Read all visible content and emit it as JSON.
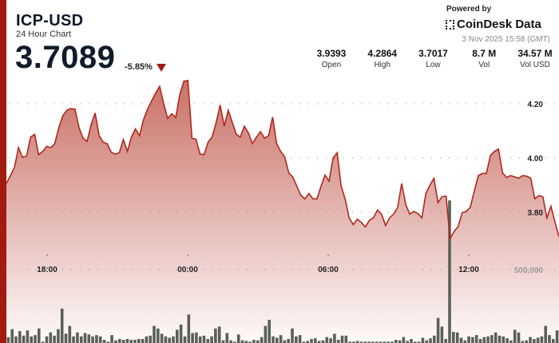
{
  "header": {
    "symbol": "ICP-USD",
    "subtitle": "24 Hour Chart",
    "price": "3.7089",
    "change": "-5.85%",
    "direction_icon": "triangle-down-icon"
  },
  "branding": {
    "powered_by": "Powered by",
    "name": "CoinDesk Data",
    "timestamp": "3 Nov 2025 15:58 (GMT)"
  },
  "stats": [
    {
      "value": "3.9393",
      "label": "Open"
    },
    {
      "value": "4.2864",
      "label": "High"
    },
    {
      "value": "3.7017",
      "label": "Low"
    },
    {
      "value": "8.7 M",
      "label": "Vol"
    },
    {
      "value": "34.57 M",
      "label": "Vol USD"
    }
  ],
  "colors": {
    "accent": "#a31b10",
    "line": "#b0281c",
    "volume": "#5a6058"
  },
  "chart_data": {
    "type": "area",
    "title": "",
    "x_ticks": [
      "18:00",
      "00:00",
      "06:00",
      "12:00"
    ],
    "y_ticks": [
      "4.20",
      "4.00",
      "3.80"
    ],
    "y_tick_values": [
      4.2,
      4.0,
      3.8
    ],
    "volume_tick": "500,000",
    "volume_tick_value": 500000,
    "grid": true,
    "price": [
      3.906,
      3.935,
      3.965,
      4.038,
      4.002,
      4.007,
      4.077,
      4.087,
      4.012,
      4.024,
      4.043,
      4.038,
      4.053,
      4.112,
      4.156,
      4.176,
      4.182,
      4.18,
      4.112,
      4.073,
      4.061,
      4.122,
      4.166,
      4.082,
      4.058,
      4.052,
      4.021,
      4.014,
      4.019,
      4.068,
      4.024,
      4.077,
      4.107,
      4.082,
      4.141,
      4.18,
      4.21,
      4.239,
      4.264,
      4.2,
      4.146,
      4.163,
      4.149,
      4.234,
      4.283,
      4.286,
      4.073,
      4.069,
      4.014,
      4.012,
      4.058,
      4.077,
      4.131,
      4.195,
      4.117,
      4.176,
      4.131,
      4.087,
      4.077,
      4.117,
      4.092,
      4.053,
      4.077,
      4.097,
      4.073,
      4.082,
      4.151,
      4.053,
      4.024,
      4.004,
      3.945,
      3.93,
      3.896,
      3.862,
      3.849,
      3.869,
      3.849,
      3.849,
      3.896,
      3.937,
      3.914,
      4.0,
      4.019,
      3.896,
      3.847,
      3.778,
      3.754,
      3.774,
      3.762,
      3.746,
      3.77,
      3.779,
      3.808,
      3.793,
      3.751,
      3.779,
      3.793,
      3.818,
      3.906,
      3.828,
      3.793,
      3.803,
      3.795,
      3.779,
      3.869,
      3.9,
      3.925,
      3.835,
      3.857,
      3.859,
      3.702,
      3.729,
      3.747,
      3.798,
      3.803,
      3.818,
      3.877,
      3.935,
      3.943,
      3.943,
      4.009,
      4.024,
      4.033,
      3.945,
      3.928,
      3.935,
      3.93,
      3.925,
      3.935,
      3.933,
      3.925,
      3.849,
      3.861,
      3.857,
      3.779,
      3.822,
      3.764,
      3.709
    ],
    "volume": [
      40000,
      94000,
      45000,
      81000,
      50000,
      86000,
      45000,
      54000,
      99000,
      9000,
      45000,
      72000,
      50000,
      94000,
      234000,
      63000,
      117000,
      45000,
      72000,
      45000,
      68000,
      58000,
      45000,
      54000,
      45000,
      22000,
      9000,
      54000,
      18000,
      27000,
      22000,
      27000,
      22000,
      22000,
      27000,
      27000,
      45000,
      50000,
      117000,
      99000,
      63000,
      45000,
      36000,
      45000,
      90000,
      126000,
      45000,
      194000,
      68000,
      72000,
      45000,
      50000,
      27000,
      45000,
      99000,
      112000,
      18000,
      68000,
      18000,
      9000,
      58000,
      18000,
      14000,
      9000,
      22000,
      18000,
      40000,
      117000,
      158000,
      45000,
      36000,
      54000,
      18000,
      27000,
      99000,
      45000,
      54000,
      9000,
      14000,
      27000,
      32000,
      14000,
      18000,
      40000,
      32000,
      63000,
      22000,
      50000,
      50000,
      9000,
      9000,
      14000,
      9000,
      9000,
      9000,
      9000,
      9000,
      9000,
      9000,
      9000,
      9000,
      22000,
      18000,
      40000,
      14000,
      27000,
      9000,
      9000,
      36000,
      18000,
      32000,
      50000,
      171000,
      112000,
      27000,
      972000,
      76000,
      72000,
      36000,
      18000,
      45000,
      40000,
      54000,
      27000,
      40000,
      45000,
      54000,
      72000,
      50000,
      45000,
      32000,
      18000,
      90000,
      72000,
      14000,
      18000,
      40000,
      27000,
      36000,
      45000,
      117000,
      54000,
      27000,
      86000
    ]
  }
}
